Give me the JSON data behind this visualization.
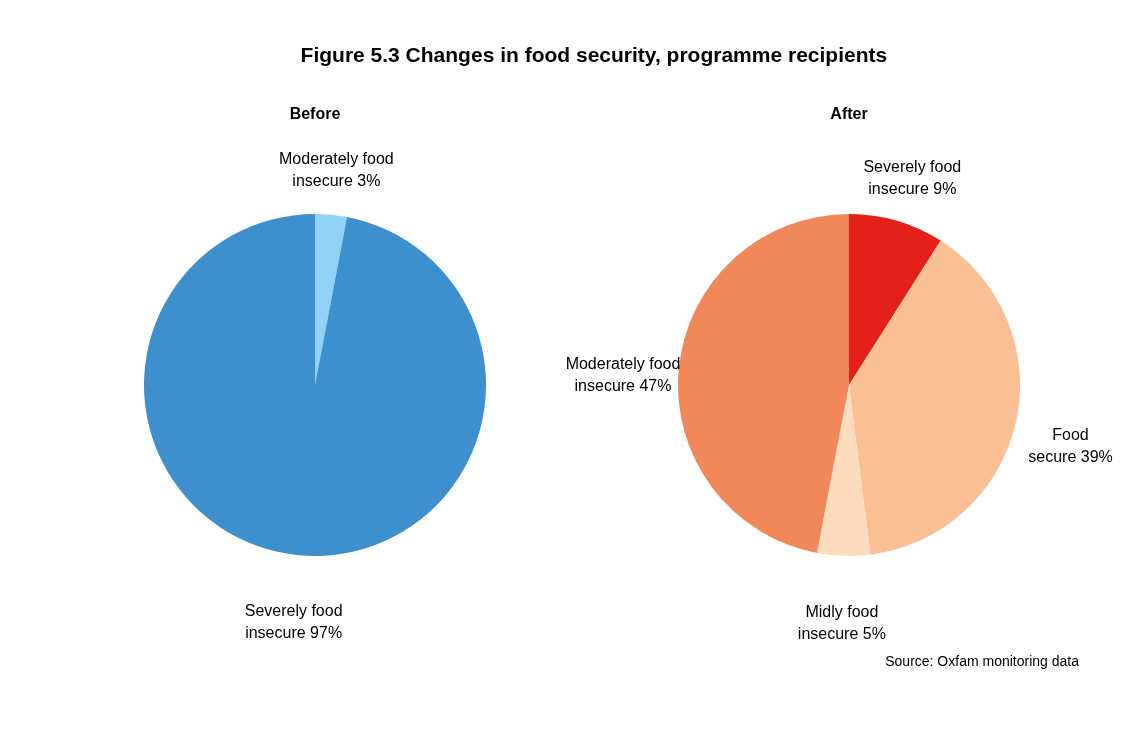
{
  "chart_data": [
    {
      "type": "pie",
      "title": "Figure 5.3 Changes in food security, programme recipients",
      "subtitle": "Before",
      "categories": [
        "Moderately food insecure",
        "Severely food insecure"
      ],
      "values": [
        3,
        97
      ],
      "colors": [
        "#8fd3f4",
        "#3d8fce"
      ],
      "value_labels": [
        "3%",
        "97%"
      ]
    },
    {
      "type": "pie",
      "title": "After",
      "categories": [
        "Severely food insecure",
        "Food secure",
        "Midly food insecure",
        "Moderately food insecure"
      ],
      "values": [
        9,
        39,
        5,
        47
      ],
      "colors": [
        "#e32119",
        "#f9c095",
        "#fcdcbc",
        "#f0885a"
      ],
      "value_labels": [
        "9%",
        "39%",
        "5%",
        "47%"
      ],
      "annotations": [
        "Source: Oxfam monitoring data"
      ]
    }
  ]
}
